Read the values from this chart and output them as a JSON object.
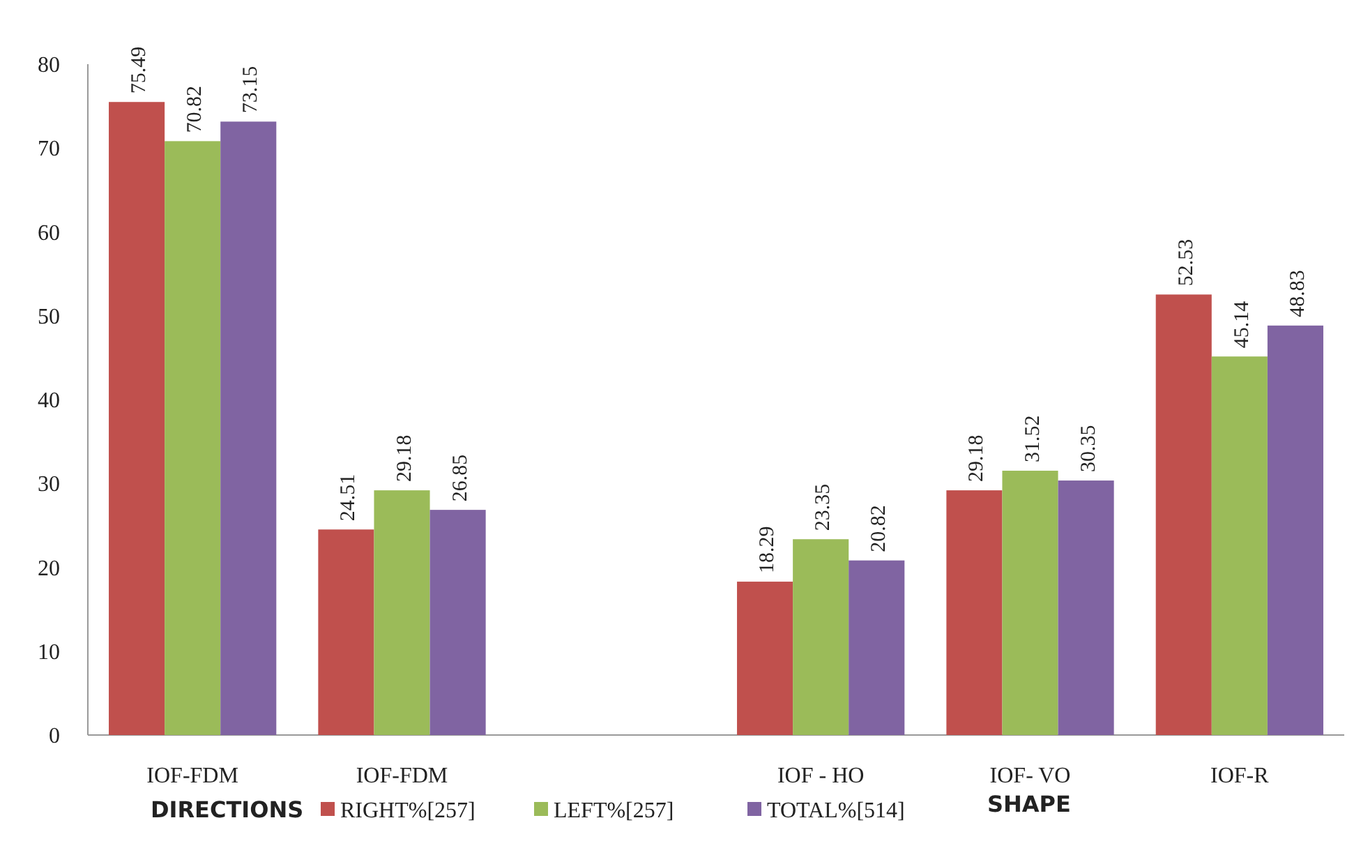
{
  "chart_data": {
    "type": "bar",
    "categories": [
      "IOF-FDM",
      "IOF-FDM",
      null,
      "IOF - HO",
      "IOF- VO",
      "IOF-R"
    ],
    "series": [
      {
        "name": "RIGHT%[257]",
        "color": "#c0504d",
        "values": [
          75.49,
          24.51,
          null,
          18.29,
          29.18,
          52.53
        ]
      },
      {
        "name": "LEFT%[257]",
        "color": "#9bbb59",
        "values": [
          70.82,
          29.18,
          null,
          23.35,
          31.52,
          45.14
        ]
      },
      {
        "name": "TOTAL%[514]",
        "color": "#8064a2",
        "values": [
          73.15,
          26.85,
          null,
          20.82,
          30.35,
          48.83
        ]
      }
    ],
    "ylim": [
      0,
      80
    ],
    "yticks": [
      0,
      10,
      20,
      30,
      40,
      50,
      60,
      70,
      80
    ],
    "grid": false,
    "legend": "bottom",
    "data_labels": true,
    "annotations": [
      "DIRECTIONS",
      "SHAPE"
    ]
  }
}
